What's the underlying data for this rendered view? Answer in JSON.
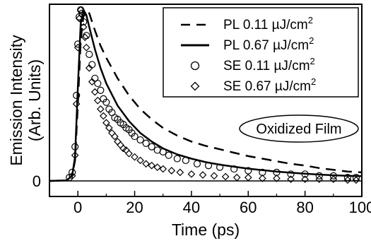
{
  "chart_data": {
    "type": "line",
    "title": "",
    "xlabel": "Time (ps)",
    "ylabel": "Emission Intensity",
    "ylabel_units": "(Arb. Units)",
    "xlim": [
      -10,
      100
    ],
    "ylim": [
      -0.05,
      1.0
    ],
    "x_ticks": [
      0,
      20,
      40,
      60,
      80,
      100
    ],
    "x_tick_labels": [
      "0",
      "20",
      "40",
      "60",
      "80",
      "100"
    ],
    "y_ticks": [
      0
    ],
    "y_tick_labels": [
      "0"
    ],
    "grid": false,
    "legend_position": "top-right",
    "annotation": "Oxidized Film",
    "series": [
      {
        "name": "PL 0.11 µJ/cm²",
        "label_main": "PL 0.11 ",
        "label_unit": "µJ/cm",
        "label_sup": "2",
        "style": "dashed-line",
        "x": [
          -10,
          -4,
          -2,
          -1,
          0,
          1,
          2,
          3,
          4,
          6,
          8,
          10,
          14,
          18,
          22,
          26,
          30,
          35,
          40,
          45,
          50,
          55,
          60,
          65,
          70,
          75,
          80,
          85,
          90,
          95,
          100
        ],
        "y": [
          0.0,
          0.003,
          0.03,
          0.12,
          0.45,
          0.82,
          0.97,
          1.0,
          0.98,
          0.88,
          0.79,
          0.72,
          0.6,
          0.5,
          0.42,
          0.36,
          0.31,
          0.265,
          0.23,
          0.205,
          0.185,
          0.165,
          0.145,
          0.13,
          0.115,
          0.1,
          0.09,
          0.075,
          0.065,
          0.055,
          0.05
        ]
      },
      {
        "name": "PL 0.67 µJ/cm²",
        "label_main": "PL 0.67 ",
        "label_unit": "µJ/cm",
        "label_sup": "2",
        "style": "solid-line",
        "x": [
          -10,
          -4,
          -2,
          -1,
          0,
          1,
          2,
          3,
          4,
          6,
          8,
          10,
          14,
          18,
          22,
          26,
          30,
          35,
          40,
          45,
          50,
          55,
          60,
          65,
          70,
          75,
          80,
          85,
          90,
          95,
          100
        ],
        "y": [
          0.0,
          0.003,
          0.03,
          0.14,
          0.55,
          0.92,
          1.0,
          0.97,
          0.9,
          0.77,
          0.66,
          0.57,
          0.44,
          0.35,
          0.28,
          0.23,
          0.19,
          0.155,
          0.13,
          0.11,
          0.095,
          0.083,
          0.072,
          0.063,
          0.055,
          0.048,
          0.042,
          0.037,
          0.033,
          0.03,
          0.028
        ]
      },
      {
        "name": "SE 0.11 µJ/cm²",
        "label_main": "SE 0.11 ",
        "label_unit": "µJ/cm",
        "label_sup": "2",
        "style": "open-circle",
        "x": [
          -3,
          -2,
          -1,
          -0.5,
          0,
          0.5,
          1,
          1.5,
          2,
          3,
          4,
          5,
          6,
          7,
          8,
          9,
          10,
          11,
          12,
          13,
          14,
          15,
          16,
          17,
          18,
          19,
          20,
          22,
          24,
          26,
          28,
          30,
          32,
          35,
          38,
          42,
          46,
          50,
          55,
          60,
          65,
          70,
          75,
          80,
          85,
          90,
          95,
          98
        ],
        "y": [
          0.02,
          0.05,
          0.2,
          0.5,
          0.8,
          0.96,
          1.0,
          0.98,
          0.93,
          0.85,
          0.74,
          0.68,
          0.6,
          0.57,
          0.53,
          0.48,
          0.46,
          0.42,
          0.4,
          0.37,
          0.36,
          0.34,
          0.33,
          0.31,
          0.3,
          0.28,
          0.26,
          0.24,
          0.22,
          0.2,
          0.18,
          0.17,
          0.15,
          0.13,
          0.12,
          0.1,
          0.09,
          0.08,
          0.07,
          0.06,
          0.05,
          0.05,
          0.04,
          0.04,
          0.03,
          0.03,
          0.02,
          0.02
        ]
      },
      {
        "name": "SE 0.67 µJ/cm²",
        "label_main": "SE 0.67 ",
        "label_unit": "µJ/cm",
        "label_sup": "2",
        "style": "open-diamond",
        "x": [
          -2,
          -1,
          -0.5,
          0,
          0.5,
          1,
          1.5,
          2,
          2.5,
          3,
          4,
          5,
          6,
          7,
          8,
          9,
          10,
          11,
          12,
          13,
          14,
          15,
          16,
          17,
          18,
          20,
          22,
          24,
          26,
          28,
          30,
          33,
          36,
          40,
          44,
          48,
          52,
          56,
          60,
          65,
          70,
          75,
          80,
          85,
          90,
          95,
          98
        ],
        "y": [
          0.03,
          0.15,
          0.45,
          0.78,
          0.95,
          1.0,
          0.97,
          0.9,
          0.84,
          0.78,
          0.66,
          0.58,
          0.52,
          0.47,
          0.42,
          0.38,
          0.34,
          0.31,
          0.28,
          0.26,
          0.23,
          0.21,
          0.19,
          0.18,
          0.16,
          0.14,
          0.12,
          0.1,
          0.09,
          0.08,
          0.07,
          0.06,
          0.05,
          0.04,
          0.035,
          0.03,
          0.025,
          0.02,
          0.02,
          0.015,
          0.015,
          0.01,
          0.01,
          0.01,
          0.01,
          0.005,
          0.005
        ]
      }
    ]
  }
}
